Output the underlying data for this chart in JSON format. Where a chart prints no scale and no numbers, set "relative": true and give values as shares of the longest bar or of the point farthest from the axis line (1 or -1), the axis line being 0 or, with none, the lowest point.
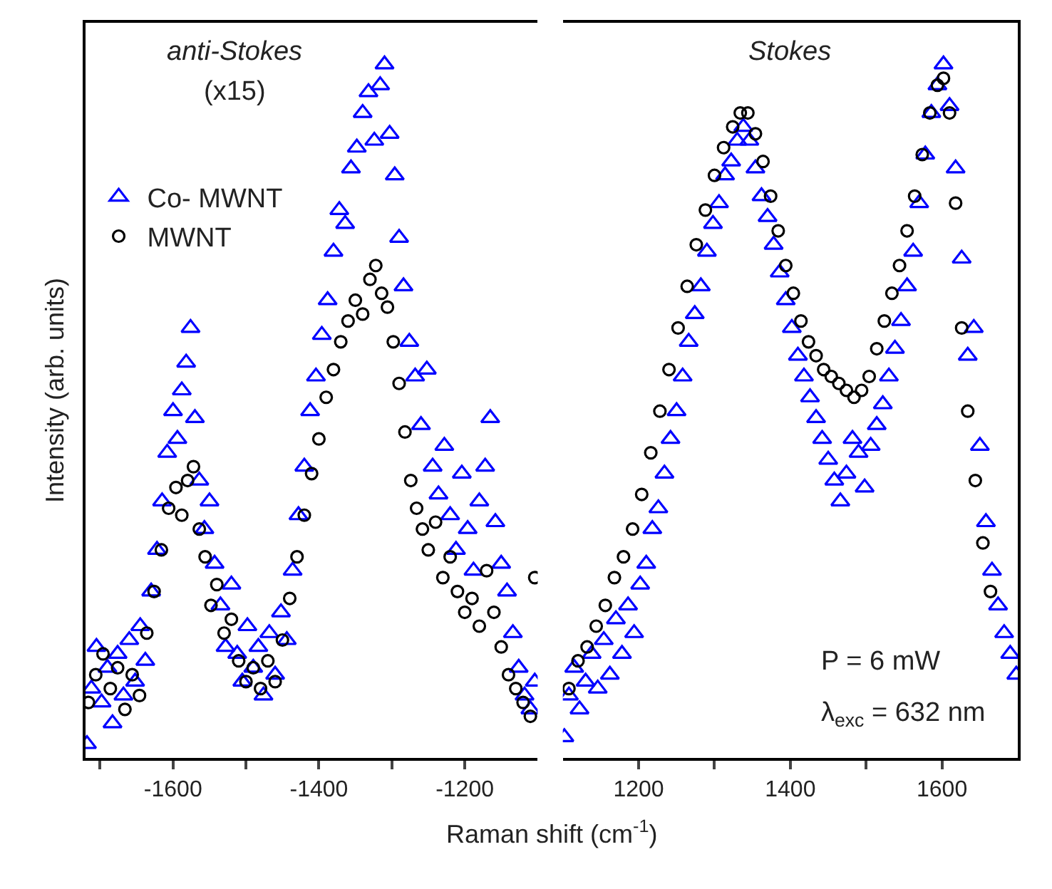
{
  "chart_data": [
    {
      "type": "scatter",
      "relative": true,
      "ylabel": "Intensity (arb. units)",
      "xlabel": "Raman shift (cm$^{-1}$)",
      "annotations": [
        "anti-Stokes",
        "(x15)"
      ],
      "legend": "top left",
      "xlim": [
        -1720,
        -1100
      ],
      "xticks": [
        {
          "value": -1700,
          "label": null
        },
        -1600,
        {
          "value": -1500,
          "label": null
        },
        -1400,
        {
          "value": -1300,
          "label": null
        },
        -1200
      ],
      "series": [
        {
          "name": "Co- MWNT",
          "color": "#0000ff",
          "marker": "triangle",
          "x": [
            -1718,
            -1712,
            -1705,
            -1698,
            -1690,
            -1683,
            -1676,
            -1668,
            -1660,
            -1652,
            -1645,
            -1638,
            -1630,
            -1622,
            -1615,
            -1608,
            -1600,
            -1594,
            -1588,
            -1582,
            -1576,
            -1570,
            -1564,
            -1557,
            -1550,
            -1543,
            -1535,
            -1528,
            -1520,
            -1512,
            -1505,
            -1498,
            -1490,
            -1483,
            -1476,
            -1468,
            -1460,
            -1452,
            -1444,
            -1436,
            -1428,
            -1420,
            -1412,
            -1404,
            -1396,
            -1388,
            -1380,
            -1372,
            -1364,
            -1356,
            -1348,
            -1340,
            -1332,
            -1324,
            -1316,
            -1310,
            -1303,
            -1296,
            -1290,
            -1284,
            -1276,
            -1268,
            -1260,
            -1252,
            -1244,
            -1236,
            -1228,
            -1220,
            -1212,
            -1204,
            -1196,
            -1188,
            -1180,
            -1172,
            -1165,
            -1158,
            -1150,
            -1142,
            -1134,
            -1126,
            -1118,
            -1110,
            -1104
          ],
          "values": [
            0.02,
            0.1,
            0.16,
            0.08,
            0.13,
            0.05,
            0.15,
            0.09,
            0.17,
            0.11,
            0.19,
            0.14,
            0.24,
            0.3,
            0.37,
            0.44,
            0.5,
            0.46,
            0.53,
            0.57,
            0.62,
            0.49,
            0.4,
            0.33,
            0.37,
            0.28,
            0.22,
            0.16,
            0.25,
            0.15,
            0.11,
            0.19,
            0.13,
            0.16,
            0.09,
            0.18,
            0.12,
            0.21,
            0.17,
            0.27,
            0.35,
            0.42,
            0.5,
            0.55,
            0.61,
            0.66,
            0.73,
            0.79,
            0.77,
            0.85,
            0.88,
            0.93,
            0.96,
            0.89,
            0.97,
            1.0,
            0.9,
            0.84,
            0.75,
            0.68,
            0.6,
            0.55,
            0.48,
            0.56,
            0.42,
            0.38,
            0.45,
            0.35,
            0.3,
            0.41,
            0.33,
            0.27,
            0.37,
            0.42,
            0.49,
            0.34,
            0.28,
            0.24,
            0.18,
            0.13,
            0.09,
            0.07,
            0.11
          ]
        },
        {
          "name": "MWNT",
          "color": "#000000",
          "marker": "circle",
          "x": [
            -1716,
            -1706,
            -1696,
            -1686,
            -1676,
            -1666,
            -1656,
            -1646,
            -1636,
            -1626,
            -1616,
            -1606,
            -1596,
            -1588,
            -1580,
            -1572,
            -1564,
            -1556,
            -1548,
            -1540,
            -1530,
            -1520,
            -1510,
            -1500,
            -1490,
            -1480,
            -1470,
            -1460,
            -1450,
            -1440,
            -1430,
            -1420,
            -1410,
            -1400,
            -1390,
            -1380,
            -1370,
            -1360,
            -1350,
            -1340,
            -1330,
            -1322,
            -1314,
            -1306,
            -1298,
            -1290,
            -1282,
            -1274,
            -1266,
            -1258,
            -1250,
            -1240,
            -1230,
            -1220,
            -1210,
            -1200,
            -1190,
            -1180,
            -1170,
            -1160,
            -1150,
            -1140,
            -1130,
            -1120,
            -1110,
            -1104
          ],
          "values": [
            0.08,
            0.12,
            0.15,
            0.1,
            0.13,
            0.07,
            0.12,
            0.09,
            0.18,
            0.24,
            0.3,
            0.36,
            0.39,
            0.35,
            0.4,
            0.42,
            0.33,
            0.29,
            0.22,
            0.25,
            0.18,
            0.2,
            0.14,
            0.11,
            0.13,
            0.1,
            0.14,
            0.11,
            0.17,
            0.23,
            0.29,
            0.35,
            0.41,
            0.46,
            0.52,
            0.56,
            0.6,
            0.63,
            0.66,
            0.64,
            0.69,
            0.71,
            0.67,
            0.65,
            0.6,
            0.54,
            0.47,
            0.4,
            0.36,
            0.33,
            0.3,
            0.34,
            0.26,
            0.29,
            0.24,
            0.21,
            0.23,
            0.19,
            0.27,
            0.21,
            0.16,
            0.12,
            0.1,
            0.08,
            0.06,
            0.26
          ]
        }
      ]
    },
    {
      "type": "scatter",
      "relative": true,
      "annotations": [
        "Stokes",
        "P = 6 mW",
        "λ$_{exc}$ = 632 nm"
      ],
      "xlim": [
        1100,
        1700
      ],
      "xticks": [
        1200,
        {
          "value": 1300,
          "label": null
        },
        1400,
        {
          "value": 1500,
          "label": null
        },
        1600
      ],
      "series": [
        {
          "color": "#0000ff",
          "marker": "triangle",
          "x": [
            1102,
            1108,
            1115,
            1122,
            1130,
            1138,
            1146,
            1154,
            1162,
            1170,
            1178,
            1186,
            1194,
            1202,
            1210,
            1218,
            1226,
            1234,
            1242,
            1250,
            1258,
            1266,
            1274,
            1282,
            1290,
            1298,
            1306,
            1314,
            1322,
            1330,
            1338,
            1346,
            1354,
            1362,
            1370,
            1378,
            1386,
            1394,
            1402,
            1410,
            1418,
            1426,
            1434,
            1442,
            1450,
            1458,
            1466,
            1474,
            1482,
            1490,
            1498,
            1506,
            1514,
            1522,
            1530,
            1538,
            1546,
            1554,
            1562,
            1570,
            1578,
            1586,
            1594,
            1602,
            1610,
            1618,
            1626,
            1634,
            1642,
            1650,
            1658,
            1666,
            1674,
            1682,
            1690,
            1698
          ],
          "values": [
            0.03,
            0.09,
            0.13,
            0.07,
            0.11,
            0.15,
            0.1,
            0.17,
            0.12,
            0.2,
            0.15,
            0.22,
            0.18,
            0.25,
            0.28,
            0.33,
            0.36,
            0.41,
            0.46,
            0.5,
            0.55,
            0.6,
            0.64,
            0.68,
            0.73,
            0.77,
            0.8,
            0.84,
            0.86,
            0.89,
            0.91,
            0.89,
            0.85,
            0.81,
            0.78,
            0.74,
            0.7,
            0.66,
            0.62,
            0.58,
            0.55,
            0.52,
            0.49,
            0.46,
            0.43,
            0.4,
            0.37,
            0.41,
            0.46,
            0.44,
            0.39,
            0.45,
            0.48,
            0.51,
            0.55,
            0.59,
            0.63,
            0.68,
            0.73,
            0.8,
            0.87,
            0.93,
            0.97,
            1.0,
            0.94,
            0.85,
            0.72,
            0.58,
            0.62,
            0.45,
            0.34,
            0.27,
            0.22,
            0.18,
            0.15,
            0.12
          ]
        },
        {
          "color": "#000000",
          "marker": "circle",
          "x": [
            1108,
            1120,
            1132,
            1144,
            1156,
            1168,
            1180,
            1192,
            1204,
            1216,
            1228,
            1240,
            1252,
            1264,
            1276,
            1288,
            1300,
            1312,
            1324,
            1334,
            1344,
            1354,
            1364,
            1374,
            1384,
            1394,
            1404,
            1414,
            1424,
            1434,
            1444,
            1454,
            1464,
            1474,
            1484,
            1494,
            1504,
            1514,
            1524,
            1534,
            1544,
            1554,
            1564,
            1574,
            1584,
            1594,
            1602,
            1610,
            1618,
            1626,
            1634,
            1644,
            1654,
            1664
          ],
          "values": [
            0.1,
            0.14,
            0.16,
            0.19,
            0.22,
            0.26,
            0.29,
            0.33,
            0.38,
            0.44,
            0.5,
            0.56,
            0.62,
            0.68,
            0.74,
            0.79,
            0.84,
            0.88,
            0.91,
            0.93,
            0.93,
            0.9,
            0.86,
            0.81,
            0.76,
            0.71,
            0.67,
            0.63,
            0.6,
            0.58,
            0.56,
            0.55,
            0.54,
            0.53,
            0.52,
            0.53,
            0.55,
            0.59,
            0.63,
            0.67,
            0.71,
            0.76,
            0.81,
            0.87,
            0.93,
            0.97,
            0.98,
            0.93,
            0.8,
            0.62,
            0.5,
            0.4,
            0.31,
            0.24
          ]
        }
      ]
    }
  ]
}
